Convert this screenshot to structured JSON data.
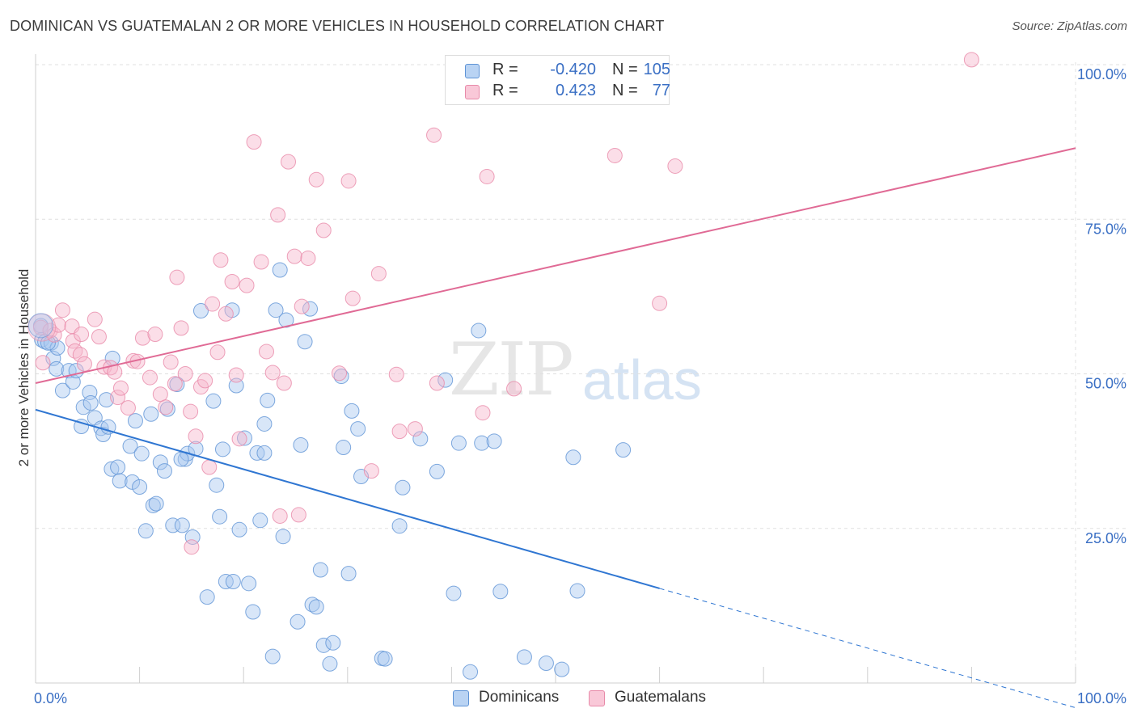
{
  "title": "DOMINICAN VS GUATEMALAN 2 OR MORE VEHICLES IN HOUSEHOLD CORRELATION CHART",
  "source": "Source: ZipAtlas.com",
  "watermark": {
    "zip": "ZIP",
    "atlas": "atlas"
  },
  "legend": {
    "rows": [
      {
        "r_label": "R =",
        "r_value": "-0.420",
        "n_label": "N =",
        "n_value": "105"
      },
      {
        "r_label": "R =",
        "r_value": "0.423",
        "n_label": "N =",
        "n_value": "77"
      }
    ]
  },
  "colors": {
    "dominican_fill": "#a9c8ef",
    "dominican_stroke": "#5f94d6",
    "dominican_line": "#2f76d2",
    "guatemalan_fill": "#f6b6cb",
    "guatemalan_stroke": "#e88aa9",
    "guatemalan_line": "#e06a95",
    "axis_text": "#3a6fc4",
    "grid": "#e0e0e0"
  },
  "chart_data": {
    "type": "scatter",
    "title": "DOMINICAN VS GUATEMALAN 2 OR MORE VEHICLES IN HOUSEHOLD CORRELATION CHART",
    "xlabel": "",
    "ylabel": "2 or more Vehicles in Household",
    "xlim": [
      0,
      100
    ],
    "ylim": [
      0,
      100
    ],
    "x_tick_labels": [
      "0.0%",
      "100.0%"
    ],
    "y_tick_labels": [
      "25.0%",
      "50.0%",
      "75.0%",
      "100.0%"
    ],
    "y_ticks": [
      25,
      50,
      75,
      100
    ],
    "grid": true,
    "legend_position": "top-center",
    "series": [
      {
        "name": "Dominicans",
        "r": -0.42,
        "n": 105,
        "trend": {
          "x0": 0,
          "y0": 44.2,
          "x1": 60,
          "y1": 15.3,
          "dashed_to_x": 100,
          "dashed_to_y": -4.0
        },
        "points": [
          [
            0.5,
            57.8
          ],
          [
            0.6,
            55.5
          ],
          [
            0.9,
            55.2
          ],
          [
            1.5,
            55.0
          ],
          [
            1.7,
            52.5
          ],
          [
            2.1,
            54.2
          ],
          [
            2.0,
            50.8
          ],
          [
            2.6,
            47.3
          ],
          [
            3.2,
            50.5
          ],
          [
            3.6,
            48.7
          ],
          [
            3.9,
            50.5
          ],
          [
            4.4,
            41.5
          ],
          [
            4.6,
            44.6
          ],
          [
            5.2,
            47.0
          ],
          [
            5.3,
            45.3
          ],
          [
            5.7,
            42.9
          ],
          [
            6.3,
            41.2
          ],
          [
            6.5,
            40.2
          ],
          [
            6.8,
            45.8
          ],
          [
            7.3,
            34.6
          ],
          [
            7.4,
            52.5
          ],
          [
            7.9,
            34.9
          ],
          [
            8.1,
            32.7
          ],
          [
            9.1,
            38.3
          ],
          [
            9.3,
            32.5
          ],
          [
            9.6,
            42.4
          ],
          [
            10.0,
            31.7
          ],
          [
            10.2,
            37.1
          ],
          [
            10.6,
            24.6
          ],
          [
            11.1,
            43.5
          ],
          [
            11.3,
            28.7
          ],
          [
            11.6,
            29.0
          ],
          [
            12.0,
            35.7
          ],
          [
            12.4,
            34.3
          ],
          [
            12.7,
            44.3
          ],
          [
            13.2,
            25.5
          ],
          [
            13.6,
            48.3
          ],
          [
            14.1,
            25.5
          ],
          [
            14.4,
            36.2
          ],
          [
            14.6,
            37.1
          ],
          [
            15.1,
            23.6
          ],
          [
            15.4,
            37.9
          ],
          [
            15.9,
            60.2
          ],
          [
            16.5,
            13.9
          ],
          [
            17.1,
            45.6
          ],
          [
            17.4,
            32.0
          ],
          [
            17.7,
            26.9
          ],
          [
            18.0,
            37.8
          ],
          [
            18.3,
            16.4
          ],
          [
            18.9,
            60.3
          ],
          [
            19.3,
            48.1
          ],
          [
            19.6,
            24.8
          ],
          [
            20.1,
            39.6
          ],
          [
            20.5,
            16.1
          ],
          [
            20.9,
            11.5
          ],
          [
            21.3,
            37.2
          ],
          [
            21.6,
            26.3
          ],
          [
            22.0,
            41.9
          ],
          [
            22.3,
            45.7
          ],
          [
            22.8,
            4.3
          ],
          [
            23.1,
            60.3
          ],
          [
            23.5,
            66.8
          ],
          [
            23.8,
            23.7
          ],
          [
            24.1,
            58.7
          ],
          [
            25.2,
            9.9
          ],
          [
            25.5,
            38.5
          ],
          [
            25.9,
            55.2
          ],
          [
            26.4,
            60.5
          ],
          [
            26.6,
            12.7
          ],
          [
            27.0,
            12.3
          ],
          [
            27.4,
            18.3
          ],
          [
            27.7,
            6.1
          ],
          [
            28.3,
            3.1
          ],
          [
            28.6,
            6.5
          ],
          [
            29.4,
            49.6
          ],
          [
            29.6,
            38.1
          ],
          [
            30.1,
            17.7
          ],
          [
            30.4,
            44.0
          ],
          [
            31.0,
            41.1
          ],
          [
            31.3,
            33.4
          ],
          [
            33.3,
            4.0
          ],
          [
            33.6,
            3.9
          ],
          [
            35.0,
            25.4
          ],
          [
            35.3,
            31.6
          ],
          [
            37.0,
            39.5
          ],
          [
            38.6,
            34.2
          ],
          [
            39.4,
            49.0
          ],
          [
            40.2,
            14.5
          ],
          [
            40.7,
            38.8
          ],
          [
            41.8,
            1.8
          ],
          [
            42.6,
            57.0
          ],
          [
            42.9,
            38.8
          ],
          [
            44.1,
            39.1
          ],
          [
            44.7,
            14.8
          ],
          [
            47.0,
            4.2
          ],
          [
            49.1,
            3.2
          ],
          [
            50.6,
            2.2
          ],
          [
            51.7,
            36.5
          ],
          [
            52.1,
            14.9
          ],
          [
            56.5,
            37.7
          ],
          [
            7.0,
            41.4
          ],
          [
            14.0,
            36.2
          ],
          [
            19.0,
            16.4
          ],
          [
            22.0,
            37.2
          ],
          [
            1.2,
            55.0
          ]
        ]
      },
      {
        "name": "Guatemalans",
        "r": 0.423,
        "n": 77,
        "trend": {
          "x0": 0,
          "y0": 48.5,
          "x1": 100,
          "y1": 86.5
        },
        "points": [
          [
            0.5,
            57.5
          ],
          [
            0.7,
            51.8
          ],
          [
            1.4,
            57.0
          ],
          [
            1.8,
            56.3
          ],
          [
            2.2,
            57.9
          ],
          [
            2.6,
            60.3
          ],
          [
            3.5,
            57.7
          ],
          [
            3.6,
            55.3
          ],
          [
            3.8,
            53.7
          ],
          [
            4.3,
            53.1
          ],
          [
            4.4,
            56.4
          ],
          [
            4.7,
            51.6
          ],
          [
            5.7,
            58.8
          ],
          [
            6.1,
            56.0
          ],
          [
            6.6,
            51.1
          ],
          [
            7.2,
            51.0
          ],
          [
            7.6,
            50.3
          ],
          [
            7.9,
            46.2
          ],
          [
            8.2,
            47.7
          ],
          [
            8.9,
            44.5
          ],
          [
            9.4,
            52.1
          ],
          [
            9.8,
            52.0
          ],
          [
            10.3,
            55.8
          ],
          [
            11.0,
            49.4
          ],
          [
            11.5,
            56.4
          ],
          [
            12.0,
            46.7
          ],
          [
            12.5,
            44.6
          ],
          [
            13.0,
            51.9
          ],
          [
            13.4,
            48.4
          ],
          [
            13.6,
            65.6
          ],
          [
            14.0,
            57.4
          ],
          [
            14.4,
            50.0
          ],
          [
            14.9,
            43.9
          ],
          [
            15.4,
            39.9
          ],
          [
            15.9,
            47.9
          ],
          [
            16.3,
            48.9
          ],
          [
            16.7,
            34.9
          ],
          [
            17.0,
            61.3
          ],
          [
            17.5,
            53.5
          ],
          [
            17.8,
            68.4
          ],
          [
            18.3,
            59.7
          ],
          [
            18.9,
            64.9
          ],
          [
            19.3,
            49.8
          ],
          [
            19.6,
            39.5
          ],
          [
            20.3,
            64.3
          ],
          [
            21.0,
            87.5
          ],
          [
            21.7,
            68.1
          ],
          [
            22.2,
            53.6
          ],
          [
            22.8,
            50.2
          ],
          [
            23.3,
            75.7
          ],
          [
            23.9,
            48.5
          ],
          [
            24.3,
            84.3
          ],
          [
            24.9,
            69.0
          ],
          [
            25.3,
            27.2
          ],
          [
            25.6,
            60.9
          ],
          [
            26.2,
            68.7
          ],
          [
            27.0,
            81.4
          ],
          [
            27.7,
            73.2
          ],
          [
            29.2,
            50.1
          ],
          [
            30.1,
            81.2
          ],
          [
            30.5,
            62.2
          ],
          [
            32.3,
            34.3
          ],
          [
            33.0,
            66.2
          ],
          [
            34.7,
            49.9
          ],
          [
            35.0,
            40.7
          ],
          [
            36.5,
            41.1
          ],
          [
            38.3,
            88.6
          ],
          [
            38.6,
            48.5
          ],
          [
            43.0,
            43.7
          ],
          [
            43.4,
            81.9
          ],
          [
            46.0,
            47.6
          ],
          [
            55.7,
            85.3
          ],
          [
            60.0,
            61.4
          ],
          [
            61.5,
            83.6
          ],
          [
            90.0,
            100.8
          ],
          [
            23.5,
            27.0
          ],
          [
            15.0,
            22.0
          ]
        ]
      }
    ]
  },
  "bottom_legend": [
    {
      "label": "Dominicans"
    },
    {
      "label": "Guatemalans"
    }
  ]
}
